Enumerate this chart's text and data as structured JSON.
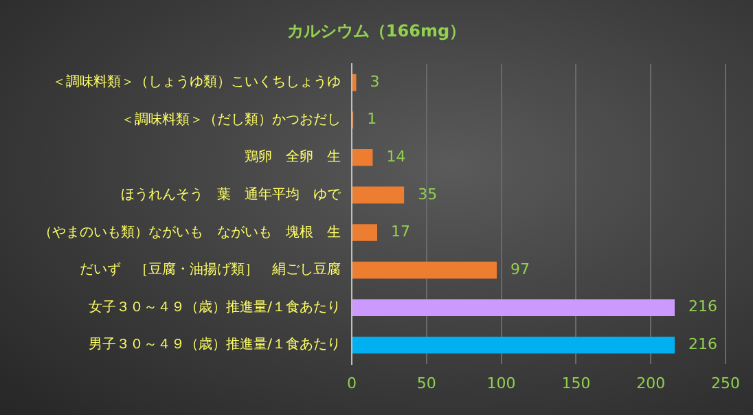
{
  "chart_data": {
    "type": "bar",
    "orientation": "horizontal",
    "title": "カルシウム（166mg）",
    "categories": [
      "＜調味料類＞（しょうゆ類）こいくちしょうゆ",
      "＜調味料類＞（だし類）かつおだし",
      "鶏卵　全卵　生",
      "ほうれんそう　葉　通年平均　ゆで",
      "（やまのいも類）ながいも　ながいも　塊根　生",
      "だいず　［豆腐・油揚げ類］　絹ごし豆腐",
      "女子３０～４９（歳）推進量/１食あたり",
      "男子３０～４９（歳）推進量/１食あたり"
    ],
    "values": [
      3,
      1,
      14,
      35,
      17,
      97,
      216,
      216
    ],
    "colors": [
      "#ed7d31",
      "#ed7d31",
      "#ed7d31",
      "#ed7d31",
      "#ed7d31",
      "#ed7d31",
      "#cc99ff",
      "#00b0f0"
    ],
    "xlim": [
      0,
      250
    ],
    "xticks": [
      0,
      50,
      100,
      150,
      200,
      250
    ],
    "grid": "x",
    "data_labels": true,
    "legend": false
  }
}
